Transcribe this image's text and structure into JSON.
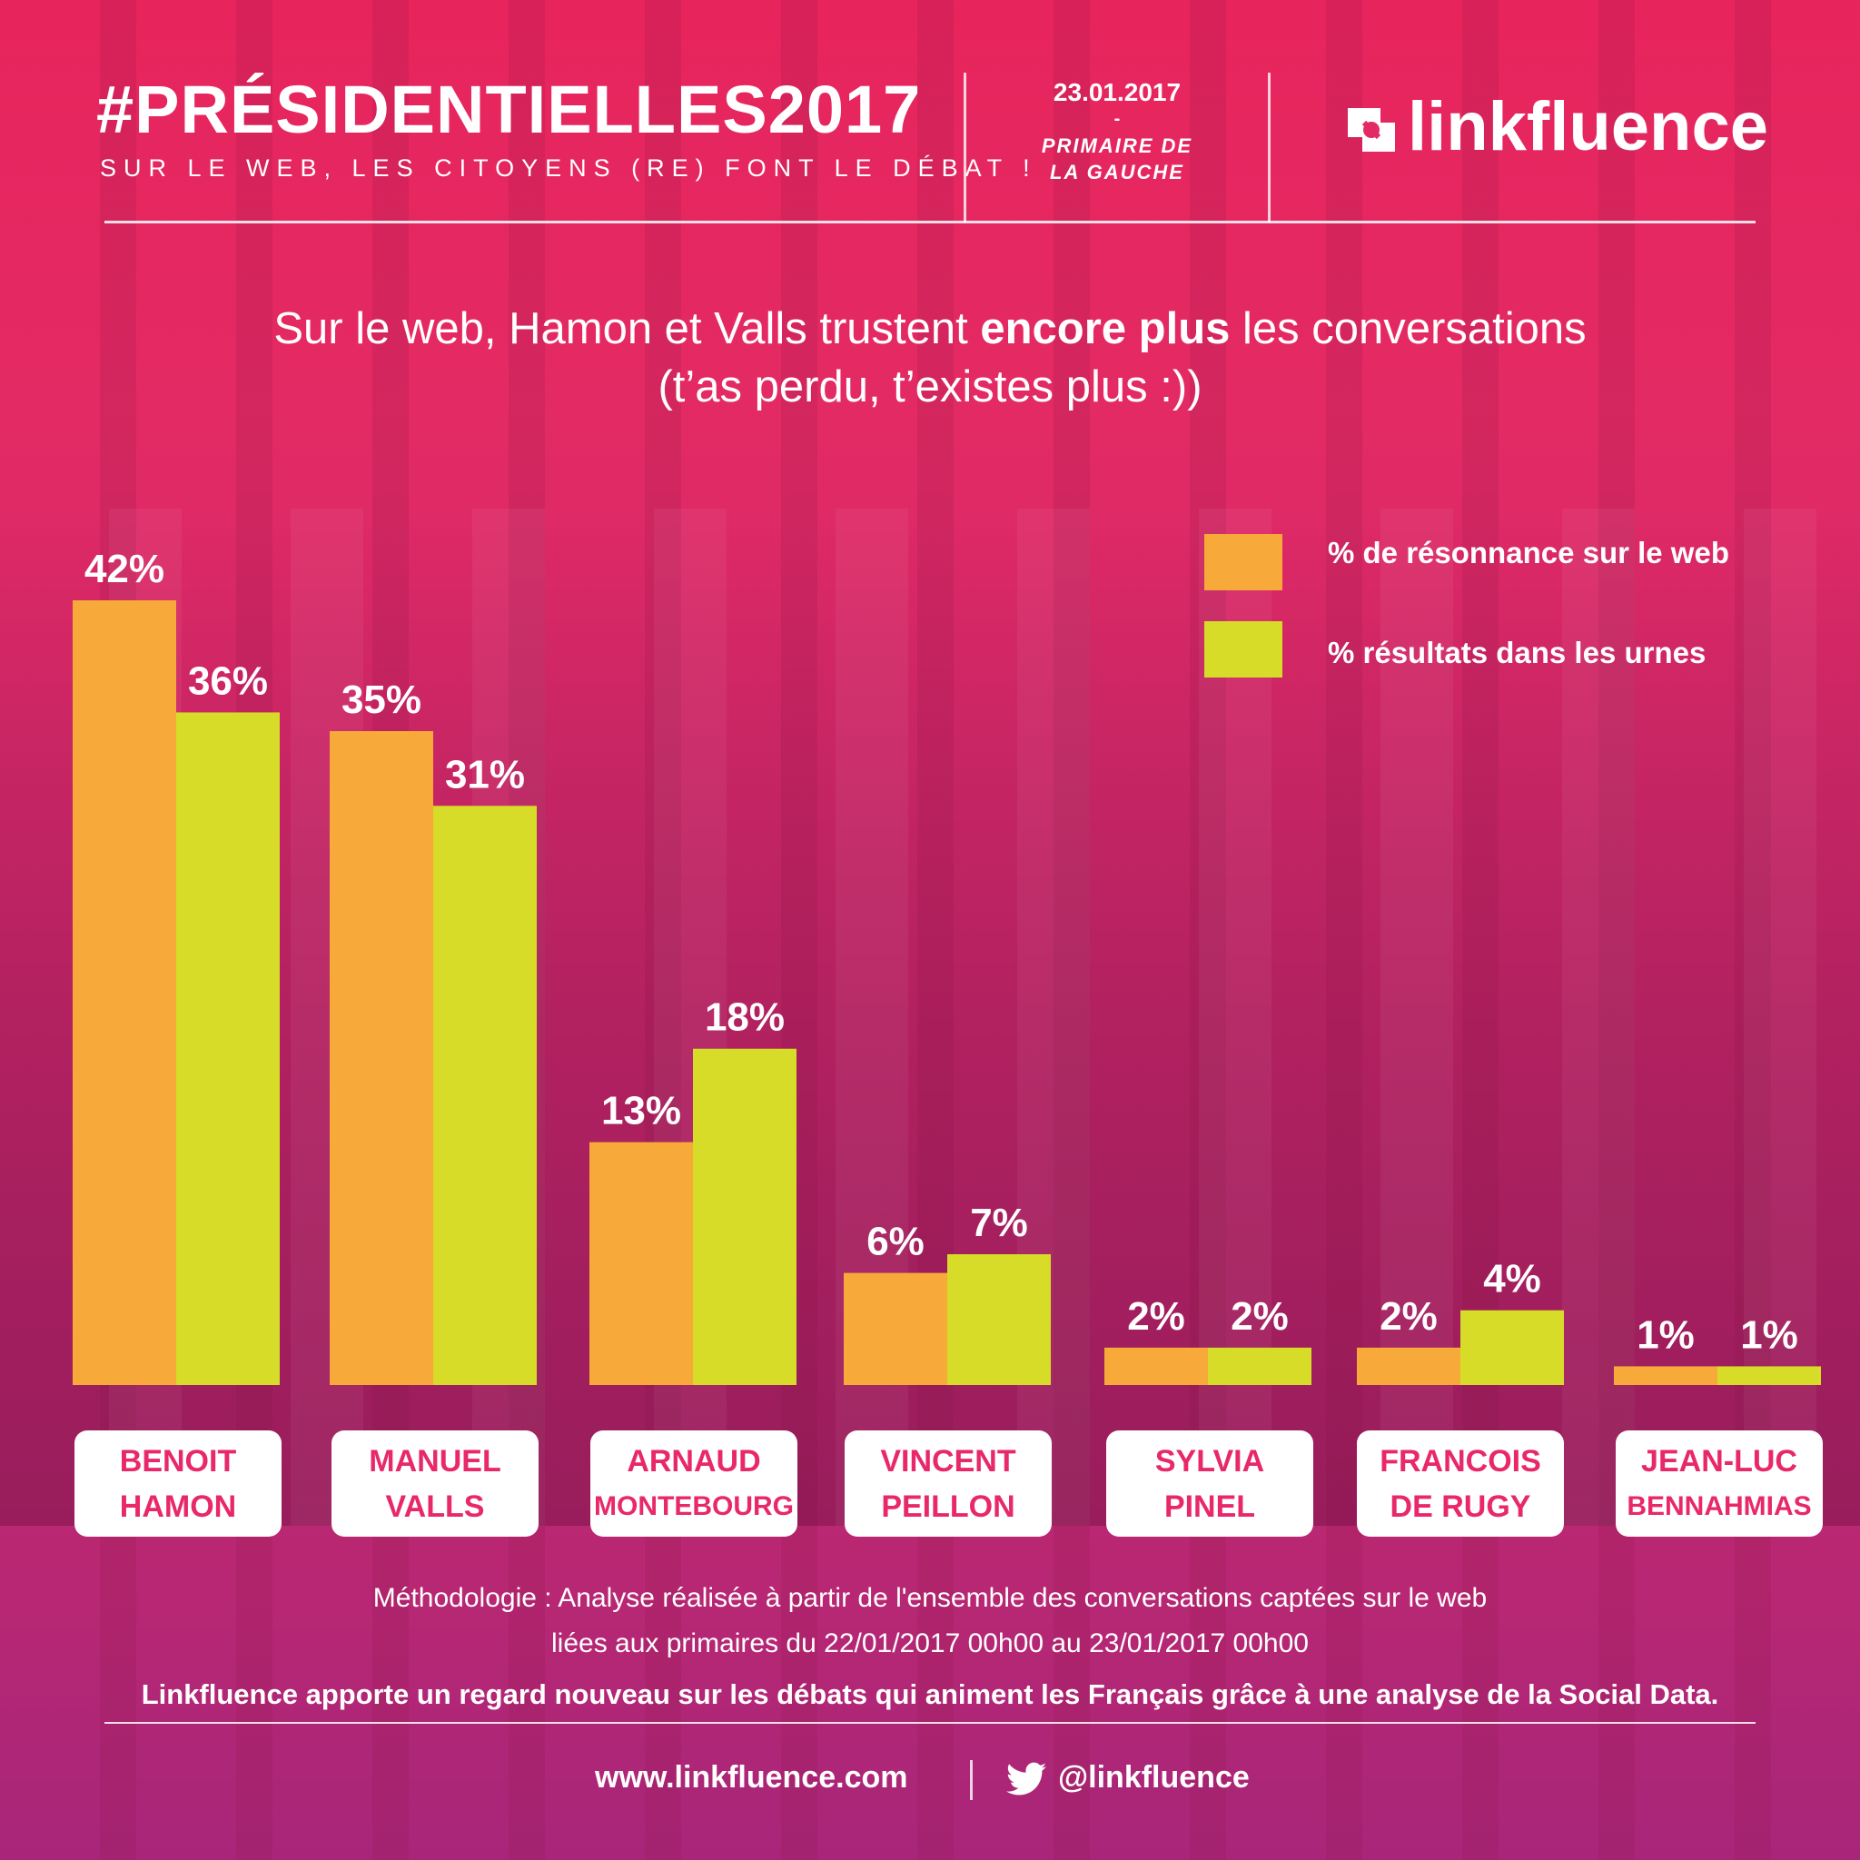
{
  "header": {
    "title": "#PRÉSIDENTIELLES2017",
    "subtitle": "SUR LE WEB, LES CITOYENS (RE) FONT LE DÉBAT !",
    "date": "23.01.2017",
    "dash": "-",
    "event_line1": "PRIMAIRE DE",
    "event_line2": "LA GAUCHE",
    "brand": "linkfluence"
  },
  "headline": {
    "part1": "Sur le web, Hamon et Valls trustent ",
    "bold": "encore plus",
    "part2": " les conversations",
    "line2": "(t’as perdu, t’existes plus :))"
  },
  "colors": {
    "web": "#f7a93a",
    "urnes": "#d6dc27",
    "candidate_text": "#e8286a"
  },
  "legend": {
    "web": "% de résonnance sur le web",
    "urnes": "%  résultats dans les urnes"
  },
  "chart_data": {
    "type": "bar",
    "categories": [
      "BENOIT HAMON",
      "MANUEL VALLS",
      "ARNAUD MONTEBOURG",
      "VINCENT PEILLON",
      "SYLVIA PINEL",
      "FRANCOIS DE RUGY",
      "JEAN-LUC BENNAHMIAS"
    ],
    "series": [
      {
        "name": "% de résonnance sur le web",
        "values": [
          42,
          35,
          13,
          6,
          2,
          2,
          1
        ]
      },
      {
        "name": "%  résultats dans les urnes",
        "values": [
          36,
          31,
          18,
          7,
          2,
          4,
          1
        ]
      }
    ],
    "data_labels": [
      [
        "42%",
        "35%",
        "13%",
        "6%",
        "2%",
        "2%",
        "1%"
      ],
      [
        "36%",
        "31%",
        "18%",
        "7%",
        "2%",
        "4%",
        "1%"
      ]
    ],
    "ylim": [
      0,
      42
    ],
    "grid": false,
    "legend_position": "top-right"
  },
  "candidates": [
    {
      "line1": "BENOIT",
      "line2": "HAMON"
    },
    {
      "line1": "MANUEL",
      "line2": "VALLS"
    },
    {
      "line1": "ARNAUD",
      "line2": "MONTEBOURG"
    },
    {
      "line1": "VINCENT",
      "line2": "PEILLON"
    },
    {
      "line1": "SYLVIA",
      "line2": "PINEL"
    },
    {
      "line1": "FRANCOIS",
      "line2": "DE RUGY"
    },
    {
      "line1": "JEAN-LUC",
      "line2": "BENNAHMIAS"
    }
  ],
  "footer": {
    "method_line1": "Méthodologie : Analyse réalisée à partir de l'ensemble des conversations captées sur le web",
    "method_line2": "liées aux primaires du 22/01/2017 00h00 au 23/01/2017 00h00",
    "tagline": "Linkfluence apporte un  regard nouveau sur les débats qui animent les Français grâce à une analyse de la Social Data.",
    "url": "www.linkfluence.com",
    "twitter": "@linkfluence",
    "twitter_icon": "twitter-bird-icon"
  }
}
